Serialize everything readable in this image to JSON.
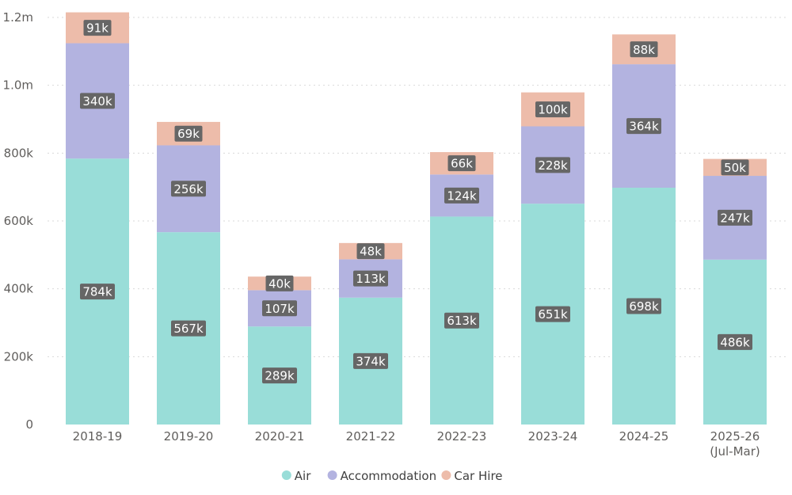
{
  "chart_data": {
    "type": "bar",
    "stacked": true,
    "title": "",
    "xlabel": "",
    "ylabel": "",
    "categories": [
      "2018-19",
      "2019-20",
      "2020-21",
      "2021-22",
      "2022-23",
      "2023-24",
      "2024-25",
      "2025-26 (Jul-Mar)"
    ],
    "category_lines": [
      [
        "2018-19"
      ],
      [
        "2019-20"
      ],
      [
        "2020-21"
      ],
      [
        "2021-22"
      ],
      [
        "2022-23"
      ],
      [
        "2023-24"
      ],
      [
        "2024-25"
      ],
      [
        "2025-26",
        "(Jul-Mar)"
      ]
    ],
    "series": [
      {
        "name": "Air",
        "color": "#99ddd8",
        "values": [
          784000,
          567000,
          289000,
          374000,
          613000,
          651000,
          698000,
          486000
        ],
        "labels": [
          "784k",
          "567k",
          "289k",
          "374k",
          "613k",
          "651k",
          "698k",
          "486k"
        ]
      },
      {
        "name": "Accommodation",
        "color": "#b3b3e0",
        "values": [
          340000,
          256000,
          107000,
          113000,
          124000,
          228000,
          364000,
          247000
        ],
        "labels": [
          "340k",
          "256k",
          "107k",
          "113k",
          "124k",
          "228k",
          "364k",
          "247k"
        ]
      },
      {
        "name": "Car Hire",
        "color": "#edbcaa",
        "values": [
          91000,
          69000,
          40000,
          48000,
          66000,
          100000,
          88000,
          50000
        ],
        "labels": [
          "91k",
          "69k",
          "40k",
          "48k",
          "66k",
          "100k",
          "88k",
          "50k"
        ]
      }
    ],
    "ylim": [
      0,
      1200000
    ],
    "yticks": [
      0,
      200000,
      400000,
      600000,
      800000,
      1000000,
      1200000
    ],
    "ytick_labels": [
      "0",
      "200k",
      "400k",
      "600k",
      "800k",
      "1.0m",
      "1.2m"
    ],
    "grid": true,
    "legend_position": "bottom-center",
    "data_label_bg": "#666666",
    "grid_color": "#d9d9d9"
  }
}
